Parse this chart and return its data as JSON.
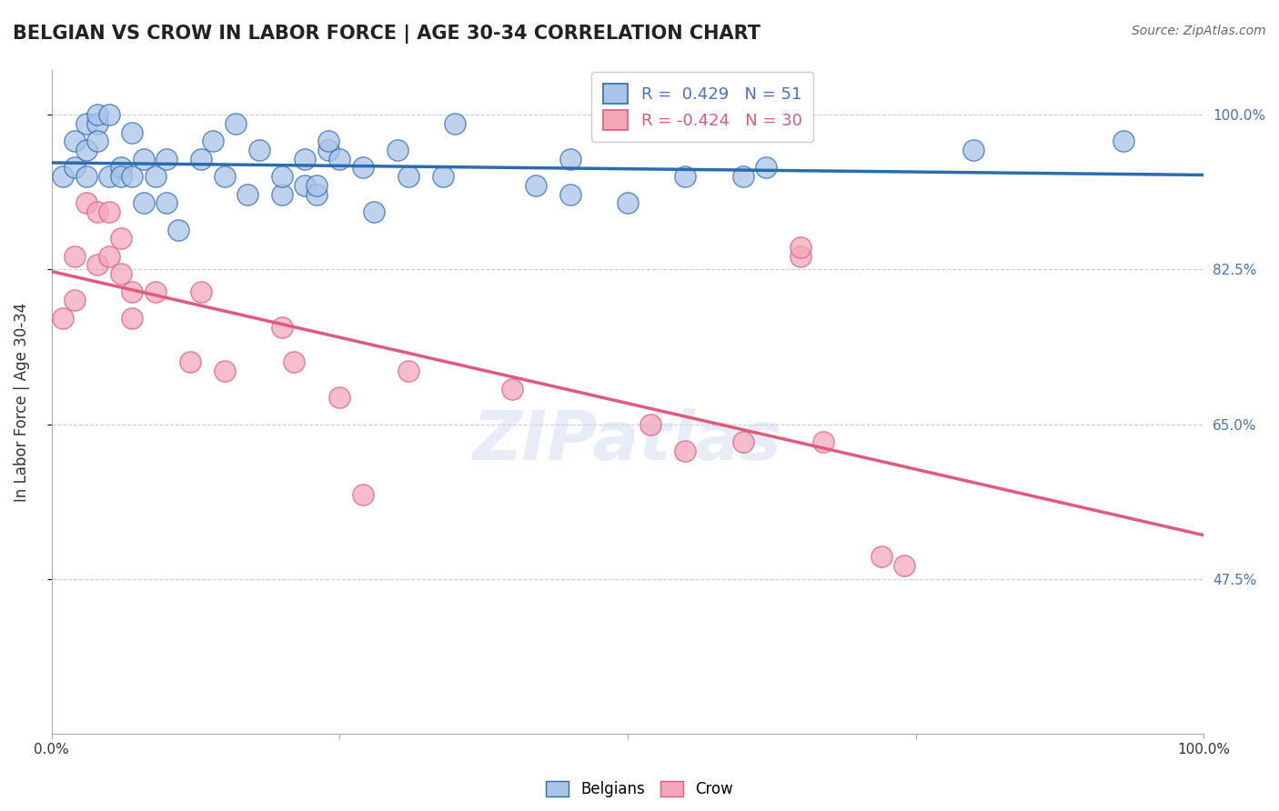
{
  "title": "BELGIAN VS CROW IN LABOR FORCE | AGE 30-34 CORRELATION CHART",
  "source": "Source: ZipAtlas.com",
  "ylabel": "In Labor Force | Age 30-34",
  "xlim": [
    0.0,
    1.0
  ],
  "ylim": [
    0.3,
    1.05
  ],
  "yticks": [
    0.475,
    0.65,
    0.825,
    1.0
  ],
  "ytick_labels": [
    "47.5%",
    "65.0%",
    "82.5%",
    "100.0%"
  ],
  "xticks": [
    0.0,
    0.25,
    0.5,
    0.75,
    1.0
  ],
  "xtick_labels": [
    "0.0%",
    "",
    "",
    "",
    "100.0%"
  ],
  "belgian_R": 0.429,
  "belgian_N": 51,
  "crow_R": -0.424,
  "crow_N": 30,
  "belgian_color": "#aac4e8",
  "crow_color": "#f4a7b9",
  "belgian_line_color": "#2b6cb0",
  "crow_line_color": "#e05a7a",
  "background_color": "#ffffff",
  "grid_color": "#cccccc",
  "belgian_x": [
    0.01,
    0.02,
    0.02,
    0.03,
    0.03,
    0.03,
    0.04,
    0.04,
    0.04,
    0.05,
    0.05,
    0.06,
    0.06,
    0.07,
    0.07,
    0.08,
    0.08,
    0.09,
    0.1,
    0.1,
    0.11,
    0.13,
    0.14,
    0.15,
    0.16,
    0.17,
    0.18,
    0.2,
    0.2,
    0.22,
    0.22,
    0.23,
    0.23,
    0.24,
    0.24,
    0.25,
    0.27,
    0.28,
    0.3,
    0.31,
    0.34,
    0.35,
    0.42,
    0.45,
    0.45,
    0.5,
    0.55,
    0.6,
    0.62,
    0.8,
    0.93
  ],
  "belgian_y": [
    0.93,
    0.97,
    0.94,
    0.93,
    0.96,
    0.99,
    0.99,
    0.97,
    1.0,
    1.0,
    0.93,
    0.94,
    0.93,
    0.98,
    0.93,
    0.9,
    0.95,
    0.93,
    0.9,
    0.95,
    0.87,
    0.95,
    0.97,
    0.93,
    0.99,
    0.91,
    0.96,
    0.91,
    0.93,
    0.92,
    0.95,
    0.91,
    0.92,
    0.96,
    0.97,
    0.95,
    0.94,
    0.89,
    0.96,
    0.93,
    0.93,
    0.99,
    0.92,
    0.91,
    0.95,
    0.9,
    0.93,
    0.93,
    0.94,
    0.96,
    0.97
  ],
  "crow_x": [
    0.01,
    0.02,
    0.02,
    0.03,
    0.04,
    0.04,
    0.05,
    0.05,
    0.06,
    0.06,
    0.07,
    0.07,
    0.09,
    0.12,
    0.13,
    0.15,
    0.2,
    0.21,
    0.25,
    0.27,
    0.31,
    0.4,
    0.52,
    0.55,
    0.6,
    0.65,
    0.65,
    0.67,
    0.72,
    0.74
  ],
  "crow_y": [
    0.77,
    0.84,
    0.79,
    0.9,
    0.89,
    0.83,
    0.84,
    0.89,
    0.86,
    0.82,
    0.8,
    0.77,
    0.8,
    0.72,
    0.8,
    0.71,
    0.76,
    0.72,
    0.68,
    0.57,
    0.71,
    0.69,
    0.65,
    0.62,
    0.63,
    0.84,
    0.85,
    0.63,
    0.5,
    0.49
  ]
}
